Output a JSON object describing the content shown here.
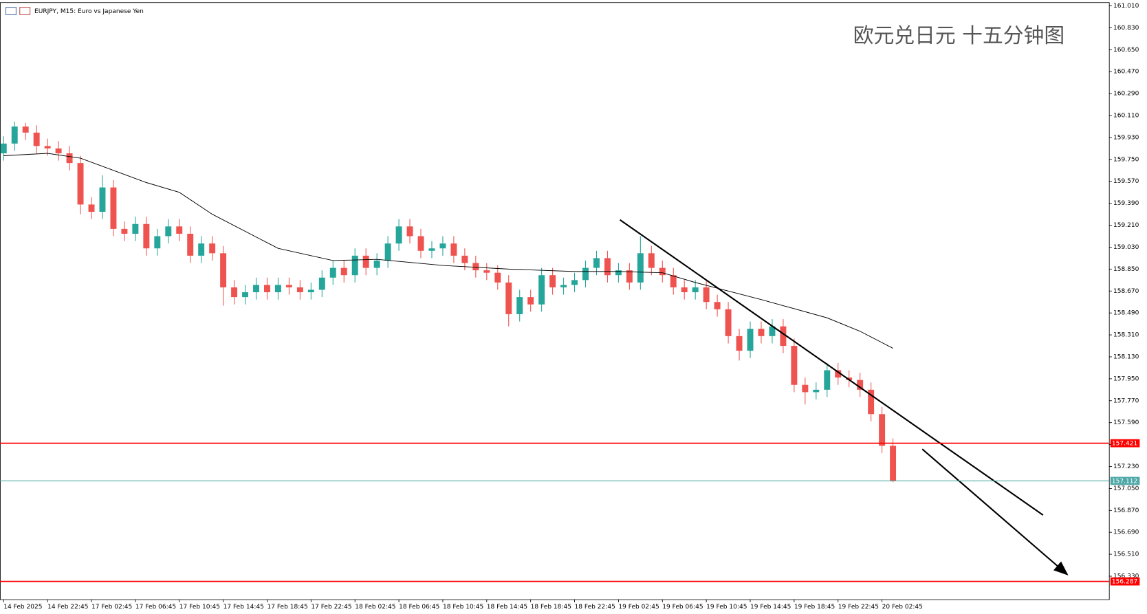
{
  "header": "EURJPY, M15:  Euro vs Japanese Yen",
  "chart_data": {
    "type": "candlestick",
    "title": "欧元兑日元 十五分钟图",
    "up_color": "#26a69a",
    "down_color": "#ef5350",
    "open": [
      159.8,
      159.88,
      160.02,
      159.97,
      159.86,
      159.84,
      159.8,
      159.72,
      159.38,
      159.32,
      159.52,
      159.18,
      159.14,
      159.22,
      159.02,
      159.12,
      159.2,
      159.14,
      158.96,
      159.06,
      158.98,
      158.7,
      158.62,
      158.66,
      158.72,
      158.66,
      158.72,
      158.7,
      158.66,
      158.68,
      158.78,
      158.86,
      158.8,
      158.96,
      158.86,
      158.92,
      159.06,
      159.2,
      159.12,
      159.0,
      159.02,
      159.06,
      158.96,
      158.9,
      158.84,
      158.82,
      158.74,
      158.48,
      158.62,
      158.56,
      158.8,
      158.7,
      158.72,
      158.76,
      158.86,
      158.94,
      158.8,
      158.84,
      158.74,
      158.98,
      158.86,
      158.8,
      158.7,
      158.66,
      158.7,
      158.58,
      158.52,
      158.3,
      158.18,
      158.36,
      158.3,
      158.38,
      158.22,
      157.9,
      157.84,
      157.86,
      158.02,
      157.96,
      157.94,
      157.86,
      157.66,
      157.4
    ],
    "high": [
      159.94,
      160.06,
      160.05,
      160.03,
      159.92,
      159.9,
      159.86,
      159.78,
      159.44,
      159.62,
      159.58,
      159.24,
      159.28,
      159.28,
      159.18,
      159.26,
      159.26,
      159.2,
      159.12,
      159.12,
      159.04,
      158.76,
      158.72,
      158.78,
      158.78,
      158.78,
      158.78,
      158.76,
      158.74,
      158.84,
      158.92,
      158.92,
      159.02,
      159.02,
      158.98,
      159.12,
      159.26,
      159.26,
      159.18,
      159.08,
      159.12,
      159.12,
      159.02,
      158.96,
      158.9,
      158.88,
      158.8,
      158.68,
      158.68,
      158.86,
      158.86,
      158.78,
      158.82,
      158.92,
      159.0,
      159.0,
      158.9,
      158.9,
      159.12,
      159.04,
      158.92,
      158.86,
      158.76,
      158.76,
      158.76,
      158.64,
      158.58,
      158.36,
      158.42,
      158.42,
      158.44,
      158.44,
      158.28,
      157.96,
      157.92,
      158.08,
      158.08,
      158.02,
      158.0,
      157.92,
      157.72,
      157.46
    ],
    "low": [
      159.74,
      159.82,
      159.91,
      159.8,
      159.78,
      159.74,
      159.66,
      159.3,
      159.26,
      159.26,
      159.12,
      159.08,
      159.08,
      158.96,
      158.96,
      159.06,
      159.08,
      158.9,
      158.9,
      158.92,
      158.55,
      158.56,
      158.56,
      158.6,
      158.6,
      158.6,
      158.64,
      158.6,
      158.6,
      158.62,
      158.72,
      158.74,
      158.74,
      158.8,
      158.8,
      158.86,
      159.0,
      159.06,
      158.94,
      158.94,
      158.96,
      158.9,
      158.84,
      158.78,
      158.76,
      158.68,
      158.38,
      158.42,
      158.5,
      158.5,
      158.64,
      158.64,
      158.66,
      158.7,
      158.8,
      158.74,
      158.74,
      158.68,
      158.68,
      158.8,
      158.74,
      158.64,
      158.6,
      158.6,
      158.52,
      158.46,
      158.24,
      158.1,
      158.12,
      158.24,
      158.24,
      158.16,
      157.84,
      157.74,
      157.78,
      157.8,
      157.9,
      157.88,
      157.8,
      157.6,
      157.34,
      157.1
    ],
    "close": [
      159.88,
      160.02,
      159.97,
      159.86,
      159.84,
      159.8,
      159.72,
      159.38,
      159.32,
      159.52,
      159.18,
      159.14,
      159.22,
      159.02,
      159.12,
      159.2,
      159.14,
      158.96,
      159.06,
      158.98,
      158.7,
      158.62,
      158.66,
      158.72,
      158.66,
      158.72,
      158.7,
      158.66,
      158.68,
      158.78,
      158.86,
      158.8,
      158.96,
      158.86,
      158.92,
      159.06,
      159.2,
      159.12,
      159.0,
      159.02,
      159.06,
      158.96,
      158.9,
      158.84,
      158.82,
      158.74,
      158.48,
      158.62,
      158.56,
      158.8,
      158.7,
      158.72,
      158.76,
      158.86,
      158.94,
      158.8,
      158.84,
      158.74,
      158.98,
      158.86,
      158.8,
      158.7,
      158.66,
      158.7,
      158.58,
      158.52,
      158.3,
      158.18,
      158.36,
      158.3,
      158.38,
      158.22,
      157.9,
      157.84,
      157.86,
      158.02,
      157.96,
      157.94,
      157.86,
      157.66,
      157.4,
      157.112
    ],
    "ma": {
      "color": "#000000",
      "x": [
        0,
        4,
        7,
        13,
        16,
        19,
        25,
        30,
        34,
        40,
        46,
        52,
        56,
        60,
        63,
        69,
        75,
        78,
        81
      ],
      "values": [
        159.78,
        159.8,
        159.76,
        159.56,
        159.48,
        159.3,
        159.02,
        158.92,
        158.93,
        158.88,
        158.85,
        158.83,
        158.83,
        158.82,
        158.74,
        158.6,
        158.45,
        158.34,
        158.2
      ]
    },
    "levels": [
      {
        "value": 157.421,
        "color": "#ff0000"
      },
      {
        "value": 157.112,
        "color": "#4fa8a8"
      },
      {
        "value": 156.287,
        "color": "#ff0000"
      }
    ],
    "xlim": [
      -0.33,
      100.67
    ],
    "xticks": [
      {
        "value": 0,
        "label": "14 Feb 2025"
      },
      {
        "value": 4,
        "label": "14 Feb 22:45"
      },
      {
        "value": 8,
        "label": "17 Feb 02:45"
      },
      {
        "value": 12,
        "label": "17 Feb 06:45"
      },
      {
        "value": 16,
        "label": "17 Feb 10:45"
      },
      {
        "value": 20,
        "label": "17 Feb 14:45"
      },
      {
        "value": 24,
        "label": "17 Feb 18:45"
      },
      {
        "value": 28,
        "label": "17 Feb 22:45"
      },
      {
        "value": 32,
        "label": "18 Feb 02:45"
      },
      {
        "value": 36,
        "label": "18 Feb 06:45"
      },
      {
        "value": 40,
        "label": "18 Feb 10:45"
      },
      {
        "value": 44,
        "label": "18 Feb 14:45"
      },
      {
        "value": 48,
        "label": "18 Feb 18:45"
      },
      {
        "value": 52,
        "label": "18 Feb 22:45"
      },
      {
        "value": 56,
        "label": "19 Feb 02:45"
      },
      {
        "value": 60,
        "label": "19 Feb 06:45"
      },
      {
        "value": 64,
        "label": "19 Feb 10:45"
      },
      {
        "value": 68,
        "label": "19 Feb 14:45"
      },
      {
        "value": 72,
        "label": "19 Feb 18:45"
      },
      {
        "value": 76,
        "label": "19 Feb 22:45"
      },
      {
        "value": 80,
        "label": "20 Feb 02:45"
      }
    ],
    "ylim": [
      156.14,
      161.04
    ],
    "yticks": [
      {
        "value": 161.01,
        "label": "161.010"
      },
      {
        "value": 160.83,
        "label": "160.830"
      },
      {
        "value": 160.65,
        "label": "160.650"
      },
      {
        "value": 160.47,
        "label": "160.470"
      },
      {
        "value": 160.29,
        "label": "160.290"
      },
      {
        "value": 160.11,
        "label": "160.110"
      },
      {
        "value": 159.93,
        "label": "159.930"
      },
      {
        "value": 159.75,
        "label": "159.750"
      },
      {
        "value": 159.57,
        "label": "159.570"
      },
      {
        "value": 159.39,
        "label": "159.390"
      },
      {
        "value": 159.21,
        "label": "159.210"
      },
      {
        "value": 159.03,
        "label": "159.030"
      },
      {
        "value": 158.85,
        "label": "158.850"
      },
      {
        "value": 158.67,
        "label": "158.670"
      },
      {
        "value": 158.49,
        "label": "158.490"
      },
      {
        "value": 158.31,
        "label": "158.310"
      },
      {
        "value": 158.13,
        "label": "158.130"
      },
      {
        "value": 157.95,
        "label": "157.950"
      },
      {
        "value": 157.77,
        "label": "157.770"
      },
      {
        "value": 157.59,
        "label": "157.590"
      },
      {
        "value": 157.41,
        "label": "157.410"
      },
      {
        "value": 157.23,
        "label": "157.230"
      },
      {
        "value": 157.05,
        "label": "157.050"
      },
      {
        "value": 156.87,
        "label": "156.870"
      },
      {
        "value": 156.69,
        "label": "156.690"
      },
      {
        "value": 156.51,
        "label": "156.510"
      },
      {
        "value": 156.33,
        "label": "156.330"
      }
    ]
  }
}
